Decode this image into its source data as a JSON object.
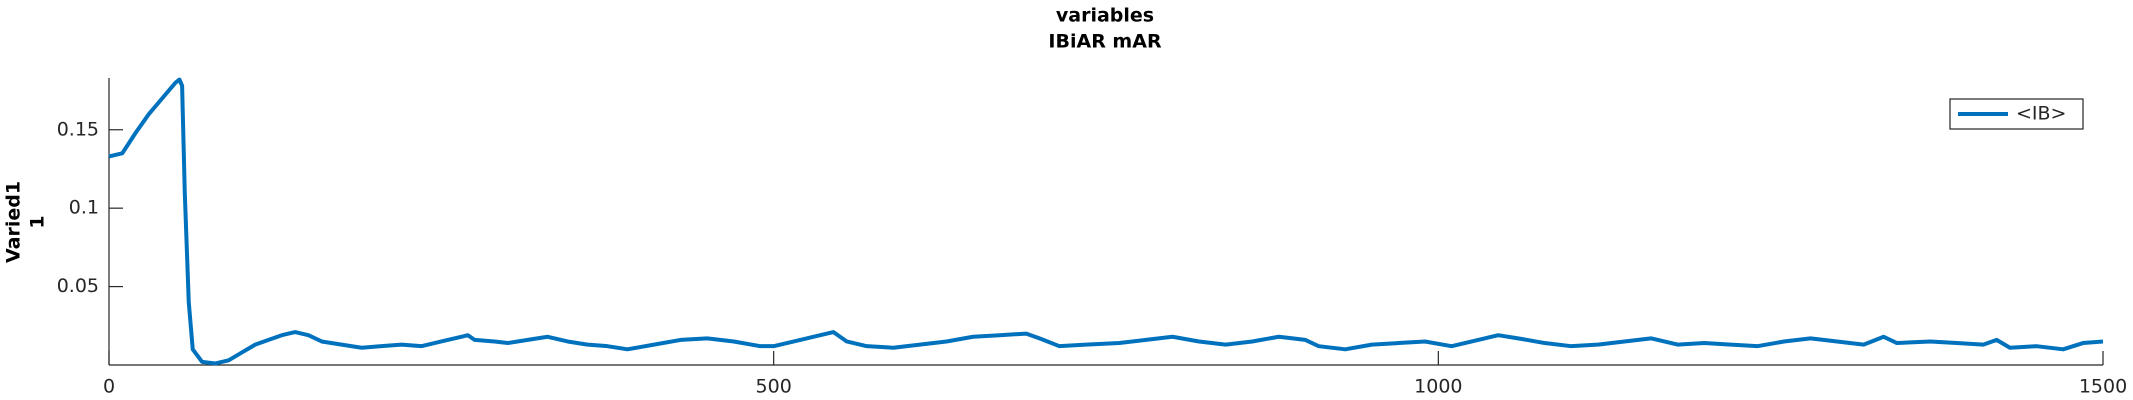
{
  "chart_data": {
    "type": "line",
    "title": "variables",
    "subtitle": "IBiAR mAR",
    "ylabel": [
      "Varied1",
      "1"
    ],
    "x": [
      0,
      10,
      20,
      30,
      40,
      50,
      53,
      55,
      57,
      60,
      63,
      70,
      80,
      90,
      100,
      110,
      120,
      130,
      140,
      150,
      160,
      175,
      190,
      205,
      220,
      235,
      250,
      265,
      270,
      275,
      290,
      300,
      315,
      330,
      345,
      360,
      375,
      390,
      410,
      430,
      450,
      470,
      490,
      500,
      520,
      535,
      545,
      555,
      570,
      590,
      610,
      630,
      650,
      670,
      690,
      700,
      715,
      735,
      760,
      780,
      800,
      820,
      840,
      860,
      880,
      900,
      910,
      930,
      950,
      970,
      990,
      1010,
      1030,
      1045,
      1060,
      1080,
      1100,
      1120,
      1140,
      1160,
      1180,
      1200,
      1220,
      1240,
      1260,
      1280,
      1300,
      1320,
      1335,
      1345,
      1370,
      1390,
      1410,
      1420,
      1430,
      1450,
      1470,
      1485,
      1500
    ],
    "series": [
      {
        "name": "<IB>",
        "color": "#0072bd",
        "values": [
          0.133,
          0.135,
          0.148,
          0.16,
          0.17,
          0.18,
          0.182,
          0.178,
          0.11,
          0.04,
          0.01,
          0.002,
          0.001,
          0.003,
          0.008,
          0.013,
          0.016,
          0.019,
          0.021,
          0.019,
          0.015,
          0.013,
          0.011,
          0.012,
          0.013,
          0.012,
          0.015,
          0.018,
          0.019,
          0.016,
          0.015,
          0.014,
          0.016,
          0.018,
          0.015,
          0.013,
          0.012,
          0.01,
          0.013,
          0.016,
          0.017,
          0.015,
          0.012,
          0.012,
          0.016,
          0.019,
          0.021,
          0.015,
          0.012,
          0.011,
          0.013,
          0.015,
          0.018,
          0.019,
          0.02,
          0.017,
          0.012,
          0.013,
          0.014,
          0.016,
          0.018,
          0.015,
          0.013,
          0.015,
          0.018,
          0.016,
          0.012,
          0.01,
          0.013,
          0.014,
          0.015,
          0.012,
          0.016,
          0.019,
          0.017,
          0.014,
          0.012,
          0.013,
          0.015,
          0.017,
          0.013,
          0.014,
          0.013,
          0.012,
          0.015,
          0.017,
          0.015,
          0.013,
          0.018,
          0.014,
          0.015,
          0.014,
          0.013,
          0.016,
          0.011,
          0.012,
          0.01,
          0.014,
          0.015
        ]
      }
    ],
    "xlim": [
      0,
      1500
    ],
    "xticks": [
      0,
      500,
      1000,
      1500
    ],
    "ylim": [
      0,
      0.183
    ],
    "yticks": [
      0.05,
      0.1,
      0.15
    ],
    "legend": "upper right"
  }
}
